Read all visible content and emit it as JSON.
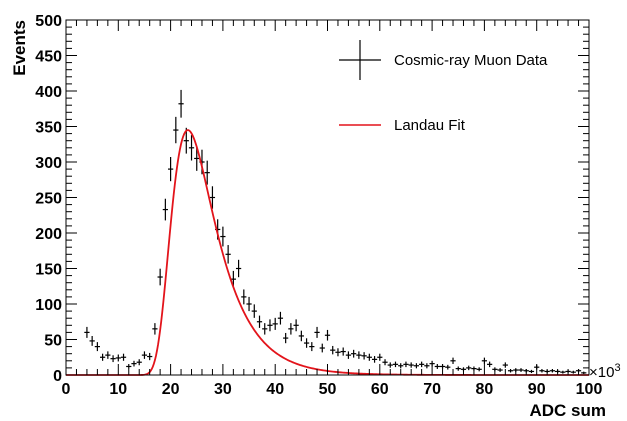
{
  "chart_data": {
    "type": "scatter",
    "xlabel": "ADC sum",
    "ylabel": "Events",
    "x_multiplier_label": "×10",
    "x_multiplier_exp": "3",
    "xlim": [
      0,
      100
    ],
    "ylim": [
      0,
      500
    ],
    "x_ticks": [
      0,
      10,
      20,
      30,
      40,
      50,
      60,
      70,
      80,
      90,
      100
    ],
    "y_ticks": [
      0,
      50,
      100,
      150,
      200,
      250,
      300,
      350,
      400,
      450,
      500
    ],
    "legend": {
      "placement": "top-right",
      "entries": [
        {
          "label": "Cosmic-ray Muon Data",
          "style": "errorbar",
          "color": "#000000"
        },
        {
          "label": "Landau Fit",
          "style": "line",
          "color": "#e3141b"
        }
      ]
    },
    "series": [
      {
        "name": "Cosmic-ray Muon Data",
        "color": "#000000",
        "x": [
          4,
          5,
          6,
          7,
          8,
          9,
          10,
          11,
          12,
          13,
          14,
          15,
          16,
          17,
          18,
          19,
          20,
          21,
          22,
          23,
          24,
          25,
          26,
          27,
          28,
          29,
          30,
          31,
          32,
          33,
          34,
          35,
          36,
          37,
          38,
          39,
          40,
          41,
          42,
          43,
          44,
          45,
          46,
          47,
          48,
          49,
          50,
          51,
          52,
          53,
          54,
          55,
          56,
          57,
          58,
          59,
          60,
          61,
          62,
          63,
          64,
          65,
          66,
          67,
          68,
          69,
          70,
          71,
          72,
          73,
          74,
          75,
          76,
          77,
          78,
          79,
          80,
          81,
          82,
          83,
          84,
          85,
          86,
          87,
          88,
          89,
          90,
          91,
          92,
          93,
          94,
          95,
          96,
          97,
          98,
          99
        ],
        "y": [
          60,
          48,
          40,
          25,
          28,
          23,
          24,
          25,
          12,
          16,
          18,
          28,
          26,
          65,
          138,
          233,
          290,
          345,
          382,
          330,
          320,
          305,
          300,
          285,
          250,
          205,
          195,
          170,
          135,
          150,
          110,
          100,
          90,
          75,
          65,
          70,
          72,
          80,
          52,
          65,
          70,
          55,
          45,
          40,
          60,
          38,
          56,
          35,
          32,
          33,
          28,
          30,
          28,
          27,
          25,
          22,
          25,
          18,
          14,
          15,
          13,
          15,
          14,
          13,
          15,
          13,
          16,
          12,
          12,
          11,
          20,
          9,
          8,
          10,
          9,
          8,
          20,
          15,
          8,
          7,
          14,
          6,
          7,
          7,
          6,
          5,
          11,
          6,
          5,
          6,
          5,
          4,
          5,
          4,
          6,
          3
        ]
      },
      {
        "name": "Landau Fit",
        "color": "#e3141b",
        "function": "landau",
        "mpv": 23.3,
        "sigma": 2.9,
        "peak": 345,
        "x_min": 14,
        "x_max": 100
      }
    ]
  }
}
